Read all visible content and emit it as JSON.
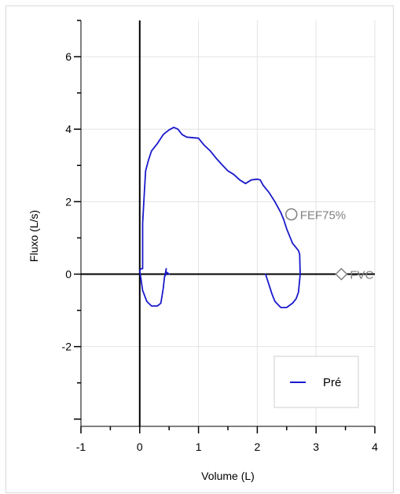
{
  "chart_data": {
    "type": "line",
    "title": "",
    "xlabel": "Volume (L)",
    "ylabel": "Fluxo (L/s)",
    "xlim": [
      -1,
      4
    ],
    "ylim": [
      -4.2,
      7
    ],
    "x_ticks": [
      -1,
      0,
      1,
      2,
      3,
      4
    ],
    "y_ticks": [
      -2,
      0,
      2,
      4,
      6
    ],
    "x_tick_labels": [
      "-1",
      "0",
      "1",
      "2",
      "3",
      "4"
    ],
    "y_tick_labels": [
      "-2",
      "0",
      "2",
      "4",
      "6"
    ],
    "grid": true,
    "legend_position": "bottom-right",
    "series": [
      {
        "name": "Pré",
        "color": "#1a1acc",
        "segments": [
          {
            "x": [
              0.0,
              0.02,
              0.05,
              0.05,
              0.08,
              0.1,
              0.15,
              0.2,
              0.3,
              0.4,
              0.5,
              0.58,
              0.65,
              0.72,
              0.8,
              1.0,
              1.1,
              1.2,
              1.3,
              1.4,
              1.5,
              1.6,
              1.7,
              1.8,
              1.9,
              2.0,
              2.05,
              2.1,
              2.15,
              2.2,
              2.3,
              2.4,
              2.45,
              2.5,
              2.55,
              2.6,
              2.7,
              2.72,
              2.73
            ],
            "y": [
              0.1,
              0.15,
              0.15,
              1.4,
              2.3,
              2.85,
              3.15,
              3.4,
              3.6,
              3.85,
              3.98,
              4.05,
              4.0,
              3.85,
              3.78,
              3.75,
              3.55,
              3.4,
              3.2,
              3.02,
              2.85,
              2.75,
              2.6,
              2.5,
              2.6,
              2.62,
              2.6,
              2.45,
              2.35,
              2.25,
              2.0,
              1.7,
              1.5,
              1.25,
              1.05,
              0.85,
              0.65,
              0.55,
              0.0
            ]
          },
          {
            "x": [
              0.0,
              0.05,
              0.12,
              0.2,
              0.3,
              0.36,
              0.4,
              0.42,
              0.44,
              0.45,
              0.44,
              0.43,
              0.46,
              0.5
            ],
            "y": [
              0.1,
              -0.45,
              -0.75,
              -0.88,
              -0.88,
              -0.8,
              -0.4,
              -0.1,
              0.05,
              0.15,
              0.0,
              -0.05,
              0.05,
              0.0
            ]
          },
          {
            "x": [
              2.73,
              2.7,
              2.66,
              2.6,
              2.5,
              2.4,
              2.3,
              2.25,
              2.2,
              2.16,
              2.14
            ],
            "y": [
              0.0,
              -0.5,
              -0.68,
              -0.8,
              -0.92,
              -0.92,
              -0.75,
              -0.55,
              -0.3,
              -0.1,
              0.0
            ]
          }
        ]
      }
    ],
    "markers": [
      {
        "label": "FEF75%",
        "x": 2.58,
        "y": 1.65,
        "shape": "circle",
        "color": "#808080"
      },
      {
        "label": "FVC",
        "x": 3.43,
        "y": 0.0,
        "shape": "diamond",
        "color": "#808080"
      }
    ]
  }
}
